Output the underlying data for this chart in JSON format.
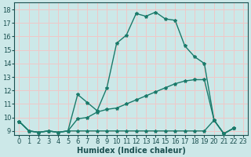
{
  "xlabel": "Humidex (Indice chaleur)",
  "background_color": "#cce8e8",
  "grid_color": "#f0c8c8",
  "line_color": "#1a7a6a",
  "xlim": [
    -0.5,
    23.5
  ],
  "ylim": [
    8.7,
    18.5
  ],
  "x_ticks": [
    0,
    1,
    2,
    3,
    4,
    5,
    6,
    7,
    8,
    9,
    10,
    11,
    12,
    13,
    14,
    15,
    16,
    17,
    18,
    19,
    20,
    21,
    22,
    23
  ],
  "y_ticks": [
    9,
    10,
    11,
    12,
    13,
    14,
    15,
    16,
    17,
    18
  ],
  "line1_x": [
    0,
    1,
    2,
    3,
    4,
    5,
    6,
    7,
    8,
    9,
    10,
    11,
    12,
    13,
    14,
    15,
    16,
    17,
    18,
    19,
    20,
    21,
    22
  ],
  "line1_y": [
    9.7,
    9.0,
    8.9,
    9.0,
    8.9,
    9.0,
    11.7,
    11.1,
    10.5,
    12.2,
    15.5,
    16.1,
    17.7,
    17.5,
    17.8,
    17.3,
    17.2,
    15.3,
    14.5,
    14.0,
    9.8,
    8.8,
    9.2
  ],
  "line2_x": [
    0,
    1,
    2,
    3,
    4,
    5,
    6,
    7,
    8,
    9,
    10,
    11,
    12,
    13,
    14,
    15,
    16,
    17,
    18,
    19,
    20,
    21,
    22
  ],
  "line2_y": [
    9.7,
    9.0,
    8.9,
    9.0,
    8.9,
    9.0,
    9.9,
    10.0,
    10.4,
    10.6,
    10.7,
    11.0,
    11.3,
    11.6,
    11.9,
    12.2,
    12.5,
    12.7,
    12.8,
    12.8,
    9.8,
    8.8,
    9.2
  ],
  "line3_x": [
    0,
    1,
    2,
    3,
    4,
    5,
    6,
    7,
    8,
    9,
    10,
    11,
    12,
    13,
    14,
    15,
    16,
    17,
    18,
    19,
    20,
    21,
    22
  ],
  "line3_y": [
    9.7,
    9.0,
    8.9,
    9.0,
    8.9,
    9.0,
    9.0,
    9.0,
    9.0,
    9.0,
    9.0,
    9.0,
    9.0,
    9.0,
    9.0,
    9.0,
    9.0,
    9.0,
    9.0,
    9.0,
    9.8,
    8.8,
    9.2
  ],
  "font_color": "#1a5050",
  "markersize": 3,
  "linewidth": 1.0,
  "tick_fontsize": 6.0,
  "xlabel_fontsize": 7.0
}
